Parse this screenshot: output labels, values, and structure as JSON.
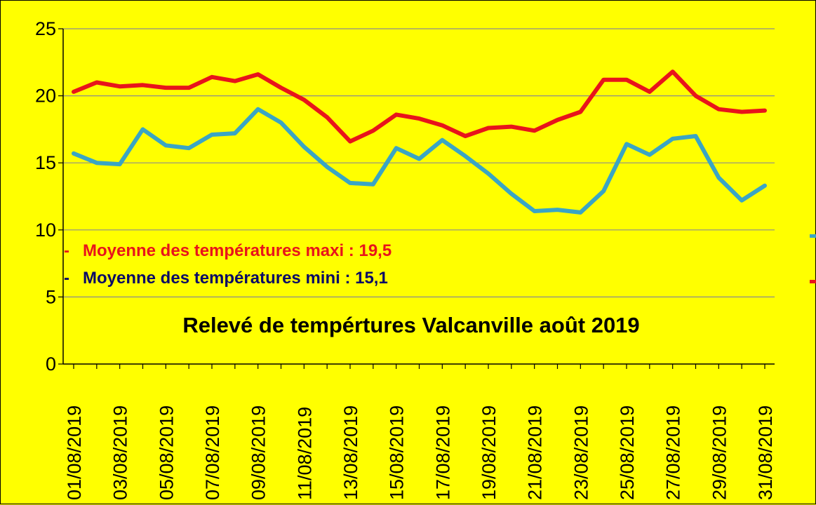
{
  "chart_data": {
    "type": "line",
    "title": "Relevé de tempértures Valcanville août 2019",
    "xlabel": "",
    "ylabel": "",
    "ylim": [
      0,
      25
    ],
    "yticks": [
      0,
      5,
      10,
      15,
      20,
      25
    ],
    "grid": "horizontal",
    "x": [
      "01/08/2019",
      "02/08/2019",
      "03/08/2019",
      "04/08/2019",
      "05/08/2019",
      "06/08/2019",
      "07/08/2019",
      "08/08/2019",
      "09/08/2019",
      "10/08/2019",
      "11/08/2019",
      "12/08/2019",
      "13/08/2019",
      "14/08/2019",
      "15/08/2019",
      "16/08/2019",
      "17/08/2019",
      "18/08/2019",
      "19/08/2019",
      "20/08/2019",
      "21/08/2019",
      "22/08/2019",
      "23/08/2019",
      "24/08/2019",
      "25/08/2019",
      "26/08/2019",
      "27/08/2019",
      "28/08/2019",
      "29/08/2019",
      "30/08/2019",
      "31/08/2019"
    ],
    "xtick_labels": [
      "01/08/2019",
      "03/08/2019",
      "05/08/2019",
      "07/08/2019",
      "09/08/2019",
      "11/08/2019",
      "13/08/2019",
      "15/08/2019",
      "17/08/2019",
      "19/08/2019",
      "21/08/2019",
      "23/08/2019",
      "25/08/2019",
      "27/08/2019",
      "29/08/2019",
      "31/08/2019"
    ],
    "series": [
      {
        "color": "#e8141b",
        "values": [
          20.3,
          21.0,
          20.7,
          20.8,
          20.6,
          20.6,
          21.4,
          21.1,
          21.6,
          20.6,
          19.7,
          18.4,
          16.6,
          17.4,
          18.6,
          18.3,
          17.8,
          17.0,
          17.6,
          17.7,
          17.4,
          18.2,
          18.8,
          21.2,
          21.2,
          20.3,
          21.8,
          20.0,
          19.0,
          18.8,
          18.9
        ]
      },
      {
        "color": "#3aa5c4",
        "values": [
          15.7,
          15.0,
          14.9,
          17.5,
          16.3,
          16.1,
          17.1,
          17.2,
          19.0,
          18.0,
          16.2,
          14.7,
          13.5,
          13.4,
          16.1,
          15.3,
          16.7,
          15.5,
          14.2,
          12.7,
          11.4,
          11.5,
          11.3,
          12.9,
          16.4,
          15.6,
          16.8,
          17.0,
          13.9,
          12.2,
          13.3
        ]
      }
    ],
    "annotations": [
      {
        "prefix": "-",
        "text": "Moyenne des températures maxi : 19,5",
        "color": "#e8141b"
      },
      {
        "prefix": "-",
        "text": "Moyenne des températures mini : 15,1",
        "color": "#0a0a66"
      }
    ],
    "legend_markers": [
      "#3aa5c4",
      "#e8141b"
    ],
    "legend_position": "right (clipped)"
  }
}
